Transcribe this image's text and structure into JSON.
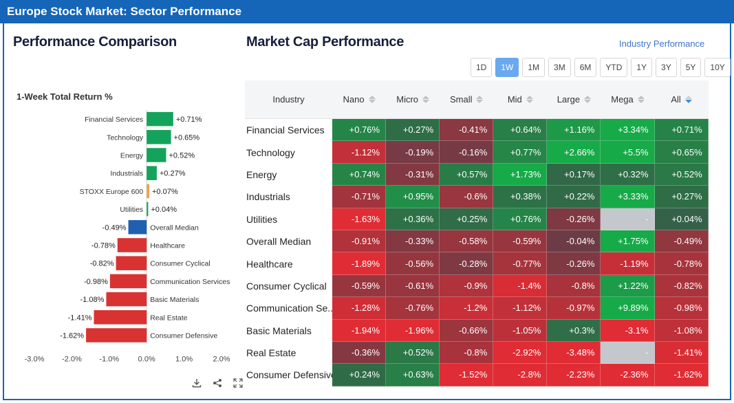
{
  "header": {
    "title": "Europe Stock Market: Sector Performance"
  },
  "left_panel": {
    "title": "Performance Comparison",
    "subtitle": "1-Week Total Return %"
  },
  "right_panel": {
    "title": "Market Cap Performance",
    "industry_link": "Industry Performance"
  },
  "periods": [
    {
      "label": "1D",
      "active": false
    },
    {
      "label": "1W",
      "active": true
    },
    {
      "label": "1M",
      "active": false
    },
    {
      "label": "3M",
      "active": false
    },
    {
      "label": "6M",
      "active": false
    },
    {
      "label": "YTD",
      "active": false
    },
    {
      "label": "1Y",
      "active": false
    },
    {
      "label": "3Y",
      "active": false
    },
    {
      "label": "5Y",
      "active": false
    },
    {
      "label": "10Y",
      "active": false
    }
  ],
  "table": {
    "headers": [
      "Industry",
      "Nano",
      "Micro",
      "Small",
      "Mid",
      "Large",
      "Mega",
      "All"
    ],
    "sorted_column": "All",
    "rows": [
      {
        "industry": "Financial Services",
        "values": [
          "+0.76%",
          "+0.27%",
          "-0.41%",
          "+0.64%",
          "+1.16%",
          "+3.34%",
          "+0.71%"
        ]
      },
      {
        "industry": "Technology",
        "values": [
          "-1.12%",
          "-0.19%",
          "-0.16%",
          "+0.77%",
          "+2.66%",
          "+5.5%",
          "+0.65%"
        ]
      },
      {
        "industry": "Energy",
        "values": [
          "+0.74%",
          "-0.31%",
          "+0.57%",
          "+1.73%",
          "+0.17%",
          "+0.32%",
          "+0.52%"
        ]
      },
      {
        "industry": "Industrials",
        "values": [
          "-0.71%",
          "+0.95%",
          "-0.6%",
          "+0.38%",
          "+0.22%",
          "+3.33%",
          "+0.27%"
        ]
      },
      {
        "industry": "Utilities",
        "values": [
          "-1.63%",
          "+0.36%",
          "+0.25%",
          "+0.76%",
          "-0.26%",
          "-",
          "+0.04%"
        ]
      },
      {
        "industry": "Overall Median",
        "values": [
          "-0.91%",
          "-0.33%",
          "-0.58%",
          "-0.59%",
          "-0.04%",
          "+1.75%",
          "-0.49%"
        ]
      },
      {
        "industry": "Healthcare",
        "values": [
          "-1.89%",
          "-0.56%",
          "-0.28%",
          "-0.77%",
          "-0.26%",
          "-1.19%",
          "-0.78%"
        ]
      },
      {
        "industry": "Consumer Cyclical",
        "values": [
          "-0.59%",
          "-0.61%",
          "-0.9%",
          "-1.4%",
          "-0.8%",
          "+1.22%",
          "-0.82%"
        ]
      },
      {
        "industry": "Communication Se...",
        "values": [
          "-1.28%",
          "-0.76%",
          "-1.2%",
          "-1.12%",
          "-0.97%",
          "+9.89%",
          "-0.98%"
        ]
      },
      {
        "industry": "Basic Materials",
        "values": [
          "-1.94%",
          "-1.96%",
          "-0.66%",
          "-1.05%",
          "+0.3%",
          "-3.1%",
          "-1.08%"
        ]
      },
      {
        "industry": "Real Estate",
        "values": [
          "-0.36%",
          "+0.52%",
          "-0.8%",
          "-2.92%",
          "-3.48%",
          "-",
          "-1.41%"
        ]
      },
      {
        "industry": "Consumer Defensive",
        "values": [
          "+0.24%",
          "+0.63%",
          "-1.52%",
          "-2.8%",
          "-2.23%",
          "-2.36%",
          "-1.62%"
        ]
      }
    ]
  },
  "colors": {
    "title_bar": "#1565b8",
    "positive_bar": "#14a35a",
    "negative_bar": "#d93232",
    "benchmark_bar": "#f0a054",
    "median_bar": "#2060b0",
    "active_period": "#6aa8f0"
  },
  "chart_data": {
    "type": "bar",
    "orientation": "horizontal",
    "title": "1-Week Total Return %",
    "categories": [
      "Financial Services",
      "Technology",
      "Energy",
      "Industrials",
      "STOXX Europe 600",
      "Utilities",
      "Overall Median",
      "Healthcare",
      "Consumer Cyclical",
      "Communication Services",
      "Basic Materials",
      "Real Estate",
      "Consumer Defensive"
    ],
    "values": [
      0.71,
      0.65,
      0.52,
      0.27,
      0.07,
      0.04,
      -0.49,
      -0.78,
      -0.82,
      -0.98,
      -1.08,
      -1.41,
      -1.62
    ],
    "value_labels": [
      "+0.71%",
      "+0.65%",
      "+0.52%",
      "+0.27%",
      "+0.07%",
      "+0.04%",
      "-0.49%",
      "-0.78%",
      "-0.82%",
      "-0.98%",
      "-1.08%",
      "-1.41%",
      "-1.62%"
    ],
    "bar_kinds": [
      "pos",
      "pos",
      "pos",
      "pos",
      "benchmark",
      "pos",
      "median",
      "neg",
      "neg",
      "neg",
      "neg",
      "neg",
      "neg"
    ],
    "xlim": [
      -3.0,
      2.0
    ],
    "xticks": [
      "-3.0%",
      "-2.0%",
      "-1.0%",
      "0.0%",
      "1.0%",
      "2.0%"
    ],
    "xtick_values": [
      -3,
      -2,
      -1,
      0,
      1,
      2
    ]
  },
  "toolbar": {
    "download_icon": "download-icon",
    "share_icon": "share-icon",
    "fullscreen_icon": "fullscreen-icon"
  }
}
